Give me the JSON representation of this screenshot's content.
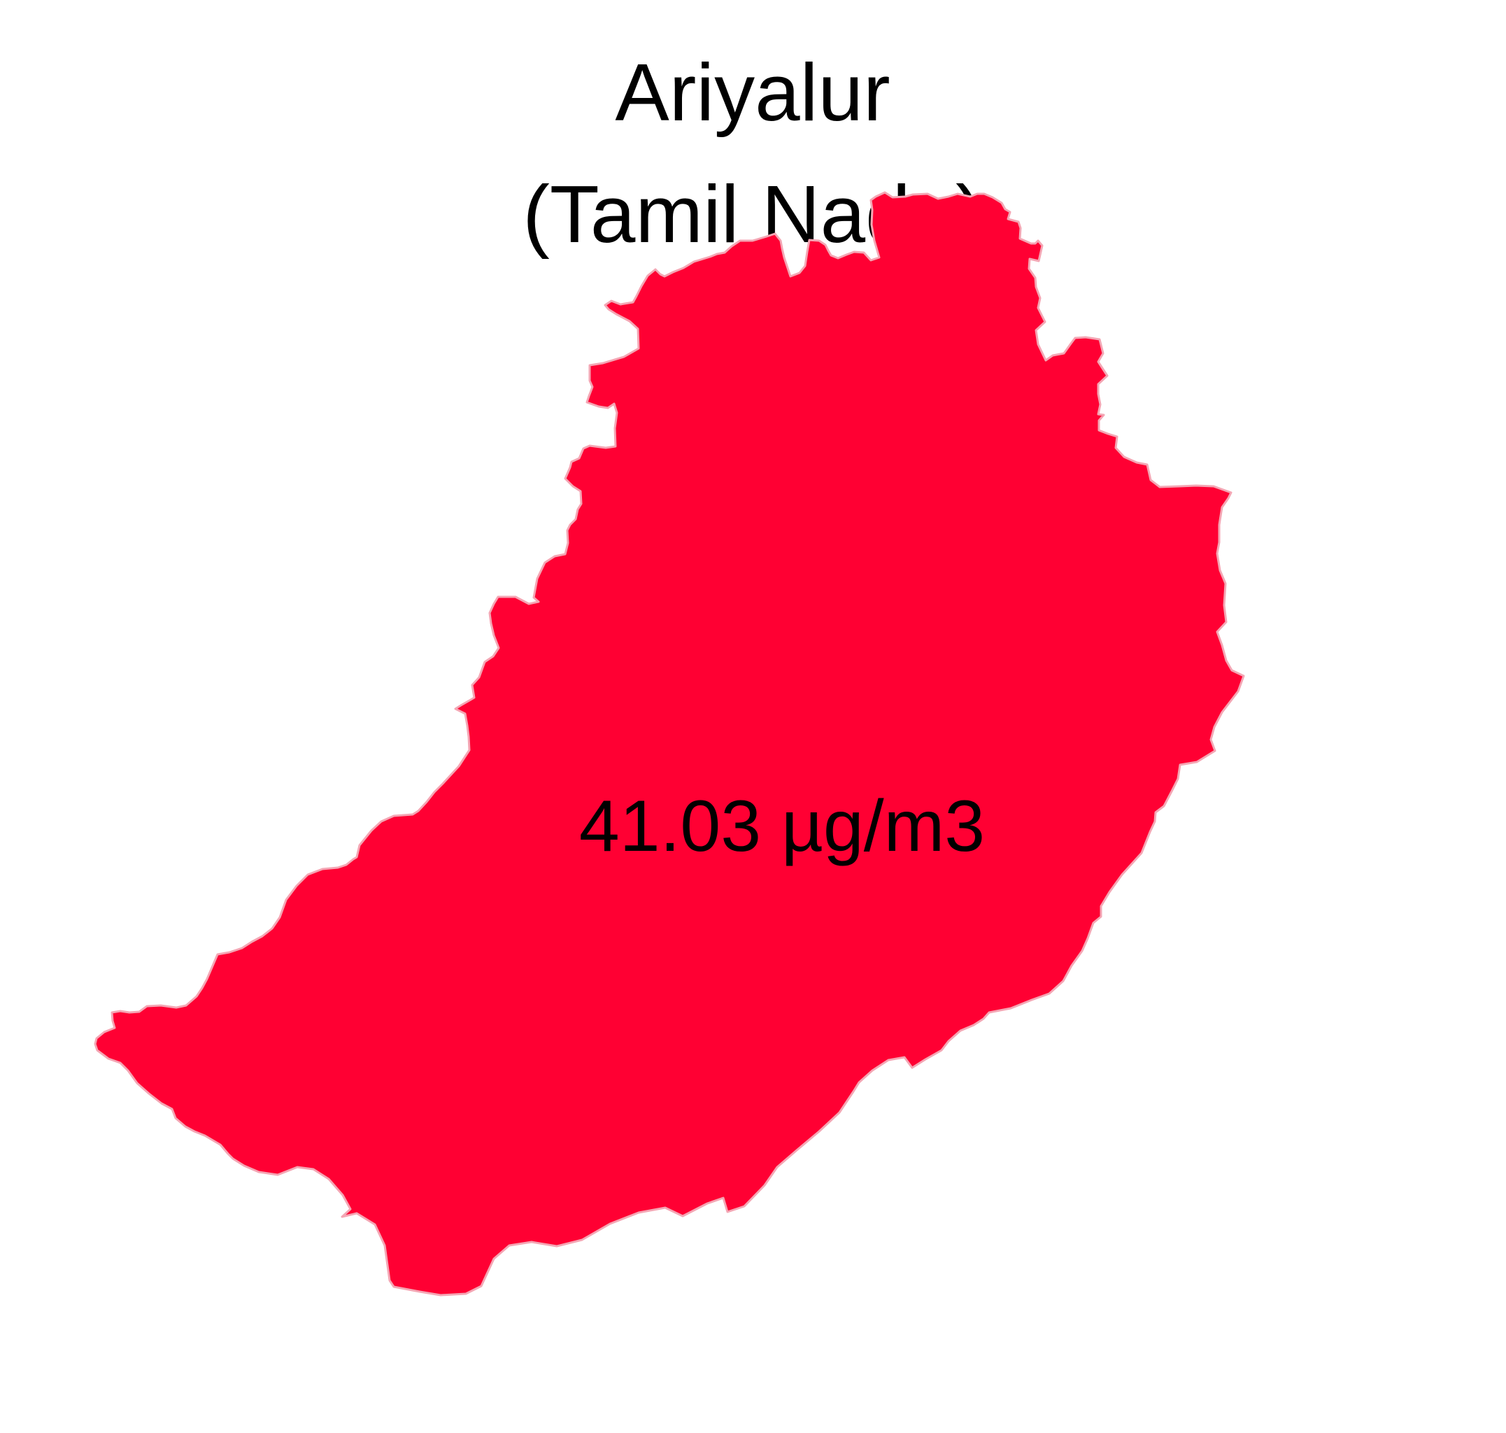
{
  "map": {
    "title_line1": "Ariyalur",
    "title_line2": "(Tamil Nadu)",
    "region_value_label": "41.03 µg/m3",
    "fill_color": "#ff0033",
    "outline_color": "#f4a6b4"
  }
}
